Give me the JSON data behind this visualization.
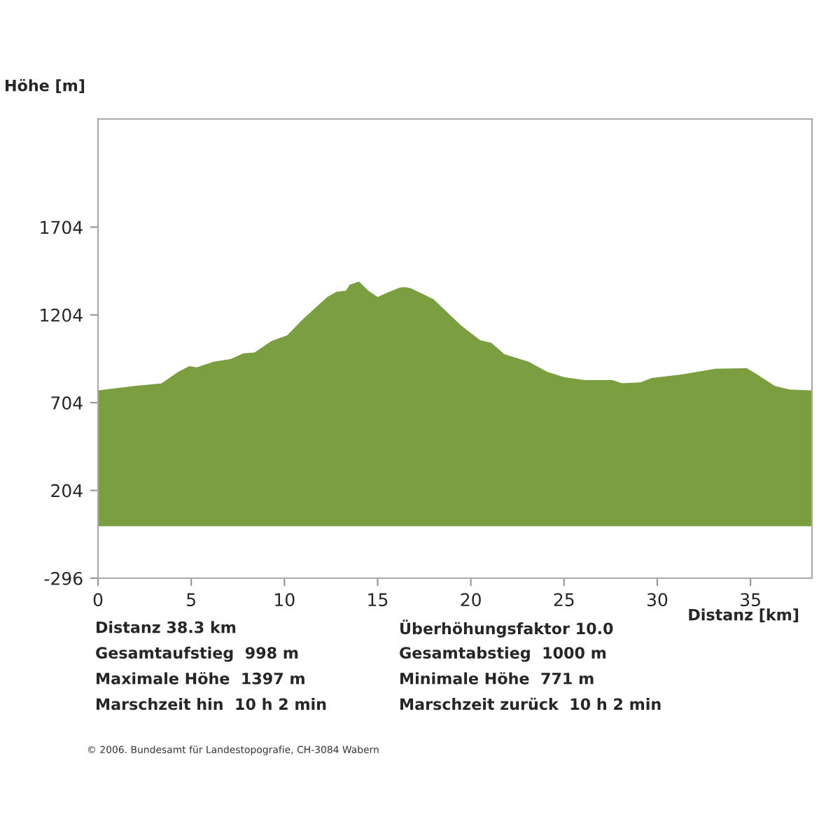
{
  "chart_data": {
    "type": "area",
    "ylabel": "Höhe [m]",
    "xlabel": "Distanz [km]",
    "x": [
      0,
      2.0,
      3.4,
      4.3,
      4.9,
      5.3,
      6.2,
      7.1,
      7.8,
      8.4,
      9.3,
      10.15,
      11.0,
      12.3,
      12.8,
      13.3,
      13.5,
      14.0,
      14.5,
      15.0,
      15.5,
      16.2,
      16.5,
      16.8,
      18.0,
      19.5,
      20.5,
      21.1,
      21.8,
      23.1,
      24.1,
      25.0,
      26.1,
      27.6,
      28.1,
      29.1,
      29.7,
      31.3,
      33.1,
      34.8,
      35.3,
      36.3,
      37.1,
      38.3
    ],
    "series": [
      {
        "color": "#7a9e40",
        "values": [
          774,
          800,
          814,
          879,
          912,
          905,
          937,
          952,
          985,
          990,
          1055,
          1088,
          1180,
          1306,
          1336,
          1342,
          1376,
          1394,
          1342,
          1306,
          1330,
          1360,
          1362,
          1355,
          1293,
          1142,
          1060,
          1045,
          980,
          937,
          879,
          849,
          833,
          833,
          815,
          820,
          845,
          864,
          897,
          900,
          868,
          800,
          779,
          774
        ]
      }
    ],
    "xlim": [
      0,
      38.3
    ],
    "xticks": [
      0,
      5,
      10,
      15,
      20,
      25,
      30,
      35
    ],
    "ylim": [
      -296,
      2320
    ],
    "yticks": [
      -296,
      204,
      704,
      1204,
      1704
    ],
    "grid": false,
    "legend": false,
    "annotations": [
      "Distanz 38.3 km",
      "Gesamtaufstieg  998 m",
      "Maximale Höhe  1397 m",
      "Marschzeit hin  10 h 2 min",
      "Überhöhungsfaktor 10.0",
      "Gesamtabstieg  1000 m",
      "Minimale Höhe  771 m",
      "Marschzeit zurück  10 h 2 min",
      "© 2006. Bundesamt für Landestopografie, CH-3084 Wabern"
    ]
  }
}
